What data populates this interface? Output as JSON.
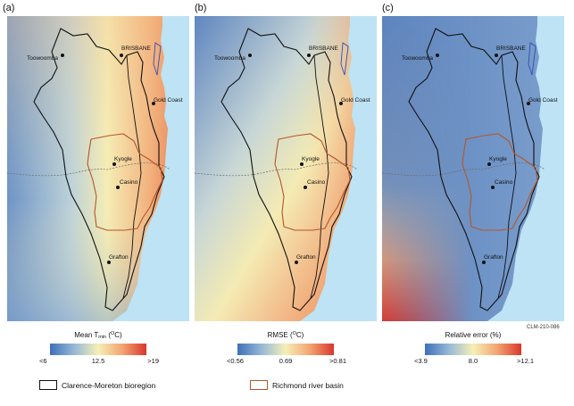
{
  "panels": [
    {
      "letter": "(a)",
      "ramp": [
        "#3f70b9",
        "#95b9d6",
        "#f6f0b6",
        "#f2a472",
        "#d9372c"
      ],
      "legend": {
        "title_main": "Mean T",
        "title_sub": "min",
        "title_open": " (",
        "title_sup": "O",
        "title_close": "C)",
        "min": "<6",
        "mid": "12.5",
        "max": ">19"
      }
    },
    {
      "letter": "(b)",
      "ramp": [
        "#3f70b9",
        "#95b9d6",
        "#f6f0b6",
        "#f2a472",
        "#d9372c"
      ],
      "legend": {
        "title_main": "RMSE (",
        "title_sup": "O",
        "title_close": "C)",
        "min": "<0.56",
        "mid": "0.69",
        "max": ">0.81"
      }
    },
    {
      "letter": "(c)",
      "ramp": [
        "#3f70b9",
        "#95b9d6",
        "#f6f0b6",
        "#f2a472",
        "#d9372c"
      ],
      "legend": {
        "title_main": "Relative error (%)",
        "min": "<3.9",
        "mid": "8.0",
        "max": ">12.1"
      }
    }
  ],
  "places": {
    "brisbane": "BRISBANE",
    "toowoomba": "Toowoomba",
    "gold_coast": "Gold Coast",
    "kyogle": "Kyogle",
    "casino": "Casino",
    "grafton": "Grafton"
  },
  "figure_code": "CLM-210-086",
  "boundaries": {
    "clarence_moreton": {
      "label": "Clarence-Moreton bioregion",
      "color": "#111111"
    },
    "richmond": {
      "label": "Richmond river basin",
      "color": "#b5562a"
    }
  },
  "ocean_color": "#bde3f5"
}
